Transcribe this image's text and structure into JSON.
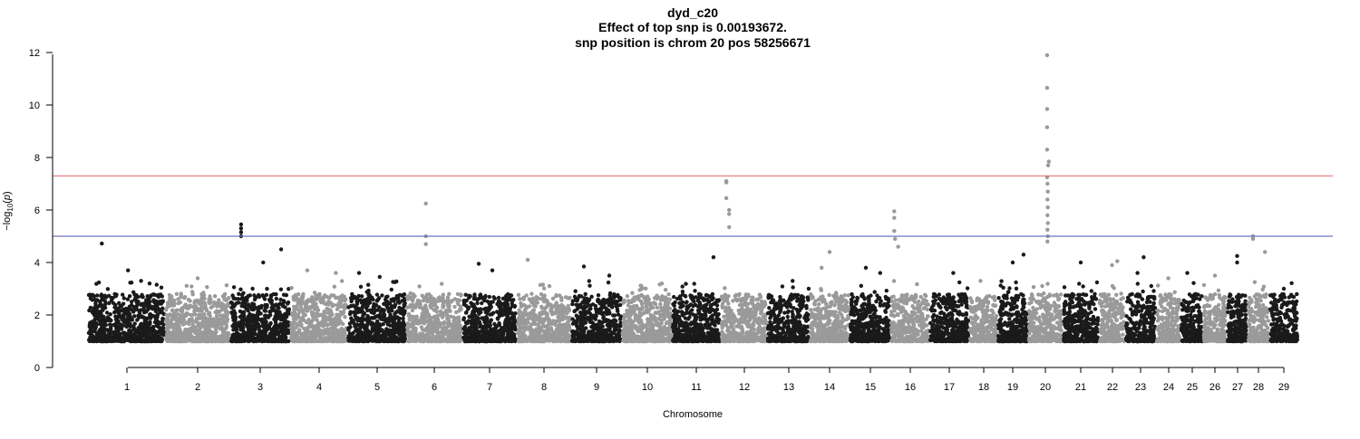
{
  "chart_data": {
    "type": "scatter",
    "title": "dyd_c20",
    "subtitle_lines": [
      "Effect of top snp is 0.00193672.",
      "snp position is chrom 20 pos 58256671"
    ],
    "xlabel": "Chromosome",
    "ylabel": "-log10(p)",
    "ylim": [
      0,
      12
    ],
    "y_ticks": [
      0,
      2,
      4,
      6,
      8,
      10,
      12
    ],
    "thresholds": [
      {
        "value": 7.3,
        "color": "#e8707a"
      },
      {
        "value": 5.0,
        "color": "#7070c0"
      }
    ],
    "colors": {
      "dark": "#1a1a1a",
      "light": "#9a9a9a"
    },
    "grid": false,
    "legend": "none",
    "chromosomes": [
      {
        "label": "1",
        "top": [
          {
            "p": 0.18,
            "y": 4.72
          },
          {
            "p": 0.52,
            "y": 3.7
          },
          {
            "p": 0.8,
            "y": 3.2
          }
        ]
      },
      {
        "label": "2",
        "top": [
          {
            "p": 0.5,
            "y": 3.4
          },
          {
            "p": 0.2,
            "y": 2.6
          }
        ]
      },
      {
        "label": "3",
        "top": [
          {
            "p": 0.18,
            "y": 5.45
          },
          {
            "p": 0.18,
            "y": 5.3
          },
          {
            "p": 0.18,
            "y": 5.15
          },
          {
            "p": 0.18,
            "y": 5.0
          },
          {
            "p": 0.55,
            "y": 4.0
          },
          {
            "p": 0.85,
            "y": 4.5
          }
        ]
      },
      {
        "label": "4",
        "top": [
          {
            "p": 0.3,
            "y": 3.7
          },
          {
            "p": 0.8,
            "y": 3.6
          }
        ]
      },
      {
        "label": "5",
        "top": [
          {
            "p": 0.2,
            "y": 3.6
          },
          {
            "p": 0.55,
            "y": 3.45
          }
        ]
      },
      {
        "label": "6",
        "top": [
          {
            "p": 0.35,
            "y": 6.25
          },
          {
            "p": 0.35,
            "y": 5.0
          },
          {
            "p": 0.35,
            "y": 4.7
          }
        ]
      },
      {
        "label": "7",
        "top": [
          {
            "p": 0.3,
            "y": 3.95
          },
          {
            "p": 0.55,
            "y": 3.7
          }
        ]
      },
      {
        "label": "8",
        "top": [
          {
            "p": 0.2,
            "y": 4.1
          },
          {
            "p": 0.6,
            "y": 3.1
          }
        ]
      },
      {
        "label": "9",
        "top": [
          {
            "p": 0.25,
            "y": 3.85
          },
          {
            "p": 0.75,
            "y": 3.5
          }
        ]
      },
      {
        "label": "10",
        "top": [
          {
            "p": 0.4,
            "y": 3.0
          },
          {
            "p": 0.8,
            "y": 3.2
          }
        ]
      },
      {
        "label": "11",
        "top": [
          {
            "p": 0.85,
            "y": 4.2
          }
        ]
      },
      {
        "label": "12",
        "top": [
          {
            "p": 0.12,
            "y": 7.1
          },
          {
            "p": 0.12,
            "y": 7.05
          },
          {
            "p": 0.12,
            "y": 6.45
          },
          {
            "p": 0.18,
            "y": 6.0
          },
          {
            "p": 0.18,
            "y": 5.85
          },
          {
            "p": 0.18,
            "y": 5.35
          }
        ]
      },
      {
        "label": "13",
        "top": [
          {
            "p": 0.6,
            "y": 3.3
          }
        ]
      },
      {
        "label": "14",
        "top": [
          {
            "p": 0.5,
            "y": 4.4
          },
          {
            "p": 0.3,
            "y": 3.8
          }
        ]
      },
      {
        "label": "15",
        "top": [
          {
            "p": 0.4,
            "y": 3.8
          },
          {
            "p": 0.75,
            "y": 3.6
          }
        ]
      },
      {
        "label": "16",
        "top": [
          {
            "p": 0.1,
            "y": 5.95
          },
          {
            "p": 0.1,
            "y": 5.7
          },
          {
            "p": 0.1,
            "y": 5.2
          },
          {
            "p": 0.12,
            "y": 4.9
          },
          {
            "p": 0.2,
            "y": 4.6
          }
        ]
      },
      {
        "label": "17",
        "top": [
          {
            "p": 0.6,
            "y": 3.6
          }
        ]
      },
      {
        "label": "18",
        "top": [
          {
            "p": 0.4,
            "y": 3.3
          }
        ]
      },
      {
        "label": "19",
        "top": [
          {
            "p": 0.5,
            "y": 4.0
          },
          {
            "p": 0.85,
            "y": 4.3
          }
        ]
      },
      {
        "label": "20",
        "top": [
          {
            "p": 0.55,
            "y": 11.9
          },
          {
            "p": 0.55,
            "y": 10.65
          },
          {
            "p": 0.55,
            "y": 9.85
          },
          {
            "p": 0.55,
            "y": 9.15
          },
          {
            "p": 0.55,
            "y": 8.3
          },
          {
            "p": 0.6,
            "y": 7.85
          },
          {
            "p": 0.58,
            "y": 7.7
          },
          {
            "p": 0.55,
            "y": 7.25
          },
          {
            "p": 0.56,
            "y": 7.0
          },
          {
            "p": 0.57,
            "y": 6.7
          },
          {
            "p": 0.56,
            "y": 6.4
          },
          {
            "p": 0.57,
            "y": 6.1
          },
          {
            "p": 0.56,
            "y": 5.8
          },
          {
            "p": 0.57,
            "y": 5.5
          },
          {
            "p": 0.56,
            "y": 5.25
          },
          {
            "p": 0.57,
            "y": 5.0
          },
          {
            "p": 0.56,
            "y": 4.8
          }
        ]
      },
      {
        "label": "21",
        "top": [
          {
            "p": 0.5,
            "y": 4.0
          }
        ]
      },
      {
        "label": "22",
        "top": [
          {
            "p": 0.7,
            "y": 4.05
          },
          {
            "p": 0.5,
            "y": 3.9
          }
        ]
      },
      {
        "label": "23",
        "top": [
          {
            "p": 0.6,
            "y": 4.2
          },
          {
            "p": 0.4,
            "y": 3.6
          }
        ]
      },
      {
        "label": "24",
        "top": [
          {
            "p": 0.5,
            "y": 3.4
          }
        ]
      },
      {
        "label": "25",
        "top": [
          {
            "p": 0.3,
            "y": 3.6
          }
        ]
      },
      {
        "label": "26",
        "top": [
          {
            "p": 0.5,
            "y": 3.5
          }
        ]
      },
      {
        "label": "27",
        "top": [
          {
            "p": 0.5,
            "y": 4.25
          },
          {
            "p": 0.5,
            "y": 4.0
          }
        ]
      },
      {
        "label": "28",
        "top": [
          {
            "p": 0.25,
            "y": 5.0
          },
          {
            "p": 0.25,
            "y": 4.9
          },
          {
            "p": 0.8,
            "y": 4.4
          }
        ]
      },
      {
        "label": "29",
        "top": [
          {
            "p": 0.5,
            "y": 3.0
          }
        ]
      }
    ]
  }
}
